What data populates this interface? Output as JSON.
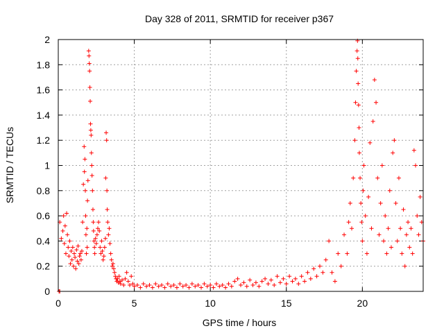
{
  "chart_data": {
    "type": "scatter",
    "title": "Day 328 of 2011, SRMTID for receiver p367",
    "xlabel": "GPS time / hours",
    "ylabel": "SRMTID / TECUs",
    "xlim": [
      0,
      24
    ],
    "ylim": [
      0,
      2
    ],
    "xticks": [
      0,
      5,
      10,
      15,
      20
    ],
    "xtick_labels": [
      "0",
      "5",
      "10",
      "15",
      "20"
    ],
    "yticks": [
      0,
      0.2,
      0.4,
      0.6,
      0.8,
      1,
      1.2,
      1.4,
      1.6,
      1.8,
      2
    ],
    "ytick_labels": [
      "0",
      "0.2",
      "0.4",
      "0.6",
      "0.8",
      "1",
      "1.2",
      "1.4",
      "1.6",
      "1.8",
      "2"
    ],
    "grid": true,
    "marker": "+",
    "series": [
      {
        "name": "SRMTID",
        "color": "#ff0000",
        "points": [
          [
            0.05,
            0.0
          ],
          [
            0.1,
            0.0
          ],
          [
            0.1,
            0.55
          ],
          [
            0.2,
            0.42
          ],
          [
            0.3,
            0.48
          ],
          [
            0.35,
            0.6
          ],
          [
            0.4,
            0.38
          ],
          [
            0.45,
            0.52
          ],
          [
            0.5,
            0.3
          ],
          [
            0.55,
            0.62
          ],
          [
            0.6,
            0.45
          ],
          [
            0.65,
            0.35
          ],
          [
            0.7,
            0.28
          ],
          [
            0.75,
            0.4
          ],
          [
            0.8,
            0.22
          ],
          [
            0.85,
            0.32
          ],
          [
            0.9,
            0.25
          ],
          [
            0.95,
            0.35
          ],
          [
            1.0,
            0.2
          ],
          [
            1.05,
            0.3
          ],
          [
            1.1,
            0.27
          ],
          [
            1.15,
            0.18
          ],
          [
            1.2,
            0.33
          ],
          [
            1.25,
            0.24
          ],
          [
            1.3,
            0.36
          ],
          [
            1.35,
            0.22
          ],
          [
            1.4,
            0.28
          ],
          [
            1.45,
            0.3
          ],
          [
            1.5,
            0.25
          ],
          [
            1.55,
            0.32
          ],
          [
            1.6,
            0.55
          ],
          [
            1.65,
            0.85
          ],
          [
            1.7,
            1.15
          ],
          [
            1.72,
            0.95
          ],
          [
            1.75,
            1.05
          ],
          [
            1.78,
            0.8
          ],
          [
            1.8,
            0.6
          ],
          [
            1.82,
            0.45
          ],
          [
            1.85,
            0.3
          ],
          [
            1.88,
            0.5
          ],
          [
            1.9,
            0.35
          ],
          [
            1.92,
            0.72
          ],
          [
            1.95,
            0.88
          ],
          [
            2.0,
            1.91
          ],
          [
            2.02,
            1.87
          ],
          [
            2.04,
            1.81
          ],
          [
            2.06,
            1.75
          ],
          [
            2.08,
            1.62
          ],
          [
            2.1,
            1.51
          ],
          [
            2.12,
            1.33
          ],
          [
            2.14,
            1.28
          ],
          [
            2.16,
            1.24
          ],
          [
            2.18,
            1.1
          ],
          [
            2.2,
            1.0
          ],
          [
            2.22,
            0.92
          ],
          [
            2.25,
            0.8
          ],
          [
            2.28,
            0.65
          ],
          [
            2.3,
            0.55
          ],
          [
            2.32,
            0.48
          ],
          [
            2.35,
            0.4
          ],
          [
            2.38,
            0.35
          ],
          [
            2.4,
            0.3
          ],
          [
            2.45,
            0.42
          ],
          [
            2.5,
            0.38
          ],
          [
            2.55,
            0.45
          ],
          [
            2.6,
            0.5
          ],
          [
            2.65,
            0.55
          ],
          [
            2.7,
            0.48
          ],
          [
            2.75,
            0.35
          ],
          [
            2.8,
            0.3
          ],
          [
            2.85,
            0.4
          ],
          [
            2.9,
            0.32
          ],
          [
            2.95,
            0.25
          ],
          [
            3.0,
            0.28
          ],
          [
            3.05,
            0.35
          ],
          [
            3.1,
            0.42
          ],
          [
            3.12,
            0.9
          ],
          [
            3.15,
            1.26
          ],
          [
            3.18,
            1.2
          ],
          [
            3.2,
            0.8
          ],
          [
            3.22,
            0.65
          ],
          [
            3.25,
            0.55
          ],
          [
            3.3,
            0.45
          ],
          [
            3.35,
            0.5
          ],
          [
            3.4,
            0.38
          ],
          [
            3.45,
            0.3
          ],
          [
            3.5,
            0.25
          ],
          [
            3.55,
            0.2
          ],
          [
            3.6,
            0.22
          ],
          [
            3.65,
            0.18
          ],
          [
            3.7,
            0.15
          ],
          [
            3.75,
            0.12
          ],
          [
            3.8,
            0.1
          ],
          [
            3.85,
            0.08
          ],
          [
            3.9,
            0.1
          ],
          [
            3.95,
            0.07
          ],
          [
            4.0,
            0.12
          ],
          [
            4.05,
            0.08
          ],
          [
            4.1,
            0.06
          ],
          [
            4.2,
            0.09
          ],
          [
            4.3,
            0.05
          ],
          [
            4.4,
            0.1
          ],
          [
            4.5,
            0.15
          ],
          [
            4.6,
            0.08
          ],
          [
            4.7,
            0.05
          ],
          [
            4.8,
            0.12
          ],
          [
            4.9,
            0.06
          ],
          [
            5.0,
            0.04
          ],
          [
            5.2,
            0.05
          ],
          [
            5.4,
            0.03
          ],
          [
            5.6,
            0.06
          ],
          [
            5.8,
            0.04
          ],
          [
            6.0,
            0.05
          ],
          [
            6.2,
            0.03
          ],
          [
            6.4,
            0.06
          ],
          [
            6.6,
            0.04
          ],
          [
            6.8,
            0.05
          ],
          [
            7.0,
            0.03
          ],
          [
            7.2,
            0.06
          ],
          [
            7.4,
            0.04
          ],
          [
            7.6,
            0.05
          ],
          [
            7.8,
            0.03
          ],
          [
            8.0,
            0.06
          ],
          [
            8.2,
            0.04
          ],
          [
            8.4,
            0.05
          ],
          [
            8.6,
            0.03
          ],
          [
            8.8,
            0.06
          ],
          [
            9.0,
            0.04
          ],
          [
            9.2,
            0.05
          ],
          [
            9.4,
            0.03
          ],
          [
            9.6,
            0.06
          ],
          [
            9.8,
            0.04
          ],
          [
            10.0,
            0.05
          ],
          [
            10.2,
            0.03
          ],
          [
            10.4,
            0.06
          ],
          [
            10.6,
            0.04
          ],
          [
            10.8,
            0.05
          ],
          [
            11.0,
            0.03
          ],
          [
            11.2,
            0.06
          ],
          [
            11.4,
            0.04
          ],
          [
            11.6,
            0.08
          ],
          [
            11.8,
            0.1
          ],
          [
            12.0,
            0.05
          ],
          [
            12.2,
            0.07
          ],
          [
            12.4,
            0.04
          ],
          [
            12.6,
            0.09
          ],
          [
            12.8,
            0.05
          ],
          [
            13.0,
            0.07
          ],
          [
            13.2,
            0.04
          ],
          [
            13.4,
            0.08
          ],
          [
            13.6,
            0.1
          ],
          [
            13.8,
            0.06
          ],
          [
            14.0,
            0.09
          ],
          [
            14.2,
            0.05
          ],
          [
            14.4,
            0.12
          ],
          [
            14.6,
            0.07
          ],
          [
            14.8,
            0.1
          ],
          [
            15.0,
            0.06
          ],
          [
            15.2,
            0.12
          ],
          [
            15.4,
            0.08
          ],
          [
            15.6,
            0.1
          ],
          [
            15.8,
            0.06
          ],
          [
            16.0,
            0.12
          ],
          [
            16.2,
            0.08
          ],
          [
            16.4,
            0.15
          ],
          [
            16.6,
            0.1
          ],
          [
            16.8,
            0.18
          ],
          [
            17.0,
            0.12
          ],
          [
            17.2,
            0.2
          ],
          [
            17.4,
            0.15
          ],
          [
            17.6,
            0.25
          ],
          [
            17.8,
            0.4
          ],
          [
            18.0,
            0.15
          ],
          [
            18.2,
            0.08
          ],
          [
            18.4,
            0.3
          ],
          [
            18.6,
            0.2
          ],
          [
            18.8,
            0.45
          ],
          [
            19.0,
            0.3
          ],
          [
            19.1,
            0.55
          ],
          [
            19.2,
            0.7
          ],
          [
            19.3,
            0.5
          ],
          [
            19.4,
            0.9
          ],
          [
            19.5,
            1.2
          ],
          [
            19.55,
            1.5
          ],
          [
            19.6,
            1.75
          ],
          [
            19.65,
            1.91
          ],
          [
            19.68,
            1.99
          ],
          [
            19.7,
            1.85
          ],
          [
            19.72,
            1.65
          ],
          [
            19.75,
            1.48
          ],
          [
            19.78,
            1.3
          ],
          [
            19.8,
            1.1
          ],
          [
            19.85,
            0.9
          ],
          [
            19.9,
            0.7
          ],
          [
            19.95,
            0.55
          ],
          [
            20.0,
            0.4
          ],
          [
            20.05,
            0.8
          ],
          [
            20.1,
            1.0
          ],
          [
            20.2,
            0.6
          ],
          [
            20.3,
            0.3
          ],
          [
            20.4,
            0.75
          ],
          [
            20.5,
            1.18
          ],
          [
            20.6,
            0.5
          ],
          [
            20.7,
            1.35
          ],
          [
            20.8,
            1.68
          ],
          [
            20.9,
            1.5
          ],
          [
            21.0,
            0.9
          ],
          [
            21.1,
            0.45
          ],
          [
            21.2,
            0.7
          ],
          [
            21.3,
            1.0
          ],
          [
            21.4,
            0.4
          ],
          [
            21.5,
            0.6
          ],
          [
            21.6,
            0.3
          ],
          [
            21.7,
            0.5
          ],
          [
            21.8,
            0.8
          ],
          [
            21.9,
            0.35
          ],
          [
            22.0,
            1.1
          ],
          [
            22.1,
            1.2
          ],
          [
            22.2,
            0.7
          ],
          [
            22.3,
            0.4
          ],
          [
            22.4,
            0.9
          ],
          [
            22.5,
            0.5
          ],
          [
            22.6,
            0.3
          ],
          [
            22.7,
            0.65
          ],
          [
            22.8,
            0.2
          ],
          [
            22.9,
            0.45
          ],
          [
            23.0,
            0.55
          ],
          [
            23.1,
            0.35
          ],
          [
            23.2,
            0.5
          ],
          [
            23.3,
            0.3
          ],
          [
            23.4,
            1.12
          ],
          [
            23.5,
            1.0
          ],
          [
            23.6,
            0.6
          ],
          [
            23.7,
            0.45
          ],
          [
            23.8,
            0.75
          ],
          [
            23.9,
            0.55
          ],
          [
            24.0,
            0.4
          ]
        ]
      }
    ]
  }
}
